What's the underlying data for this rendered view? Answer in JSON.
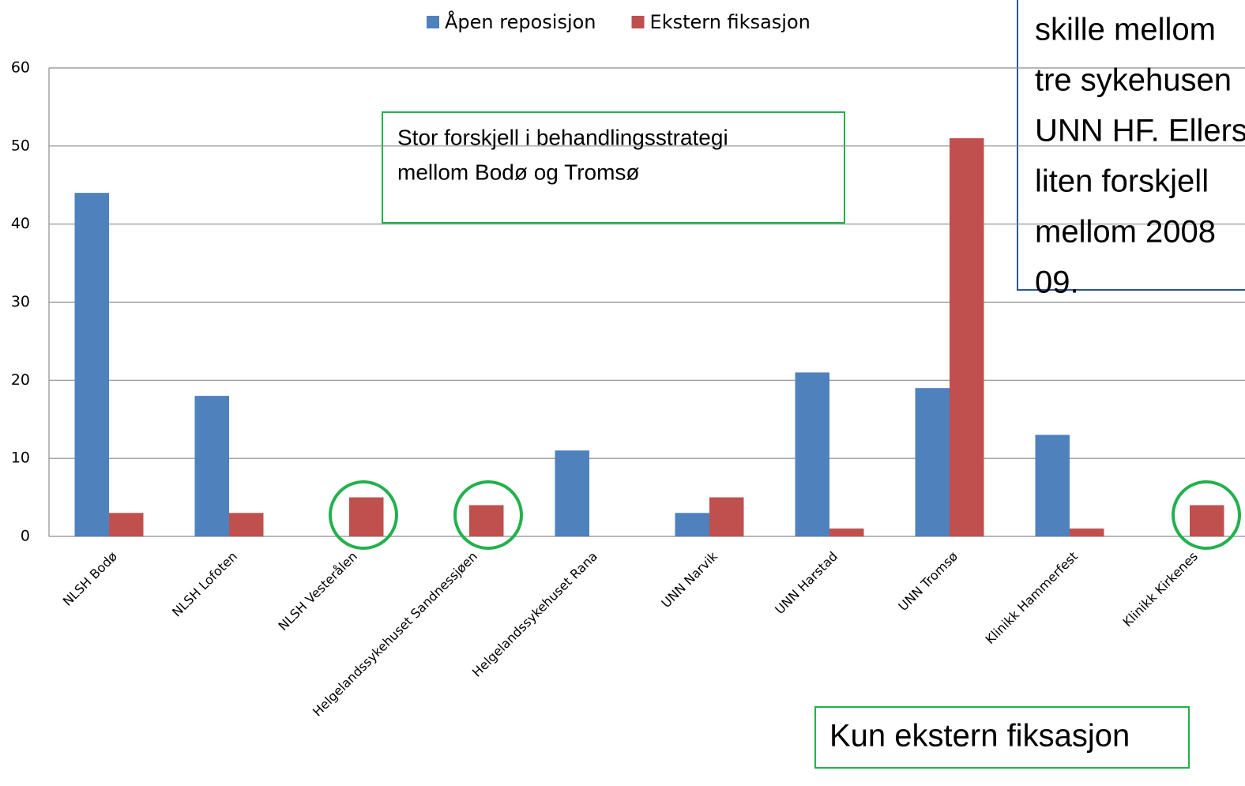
{
  "chart_data": {
    "type": "bar",
    "categories": [
      "NLSH Bodø",
      "NLSH Lofoten",
      "NLSH Vesterålen",
      "Helgelandssykehuset Sandnessjøen",
      "Helgelandssykehuset Rana",
      "UNN Narvik",
      "UNN Harstad",
      "UNN Tromsø",
      "Klinikk Hammerfest",
      "Klinikk Kirkenes"
    ],
    "series": [
      {
        "name": "Åpen reposisjon",
        "color": "#4f81bd",
        "values": [
          44,
          18,
          0,
          0,
          11,
          3,
          21,
          19,
          13,
          0
        ]
      },
      {
        "name": "Ekstern fiksasjon",
        "color": "#c0504d",
        "values": [
          3,
          3,
          5,
          4,
          0,
          5,
          1,
          51,
          1,
          4
        ]
      }
    ],
    "ylim": [
      0,
      60
    ],
    "yticks": [
      0,
      10,
      20,
      30,
      40,
      50,
      60
    ],
    "grid": true,
    "legend": "top",
    "annotations": [
      {
        "lines": [
          "Stor forskjell i behandlingsstrategi",
          "mellom Bodø og Tromsø"
        ]
      },
      {
        "lines": [
          "Kun ekstern fiksasjon"
        ]
      },
      {
        "lines": [
          "skille mellom",
          "tre sykehusen",
          "UNN HF. Ellers",
          "liten forskjell",
          "mellom 2008",
          "09."
        ]
      }
    ]
  }
}
